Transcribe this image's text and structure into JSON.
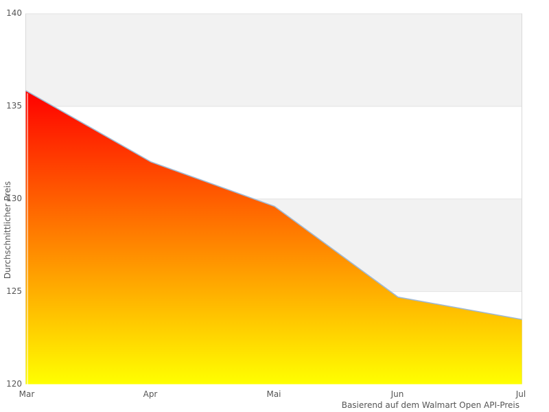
{
  "chart_data": {
    "type": "area",
    "categories": [
      "Mar",
      "Apr",
      "Mai",
      "Jun",
      "Jul"
    ],
    "values": [
      135.8,
      132.0,
      129.6,
      124.7,
      123.5
    ],
    "title": "",
    "xlabel": "",
    "ylabel": "Durchschnittlicher Preis",
    "caption": "Basierend auf dem Walmart Open API-Preis",
    "ylim": [
      120,
      140
    ],
    "yticks": [
      140,
      135,
      130,
      125,
      120
    ],
    "legend": "none",
    "grid": "alternating-horizontal-bands",
    "colors": {
      "gradient_top": "#ff0000",
      "gradient_bottom": "#ffff00",
      "line": "#a0b9d2",
      "band_fill": "#f2f2f2",
      "band_border": "#e3e3e3",
      "plot_border": "#d9d9d9",
      "text": "#555555",
      "background": "#ffffff"
    }
  }
}
